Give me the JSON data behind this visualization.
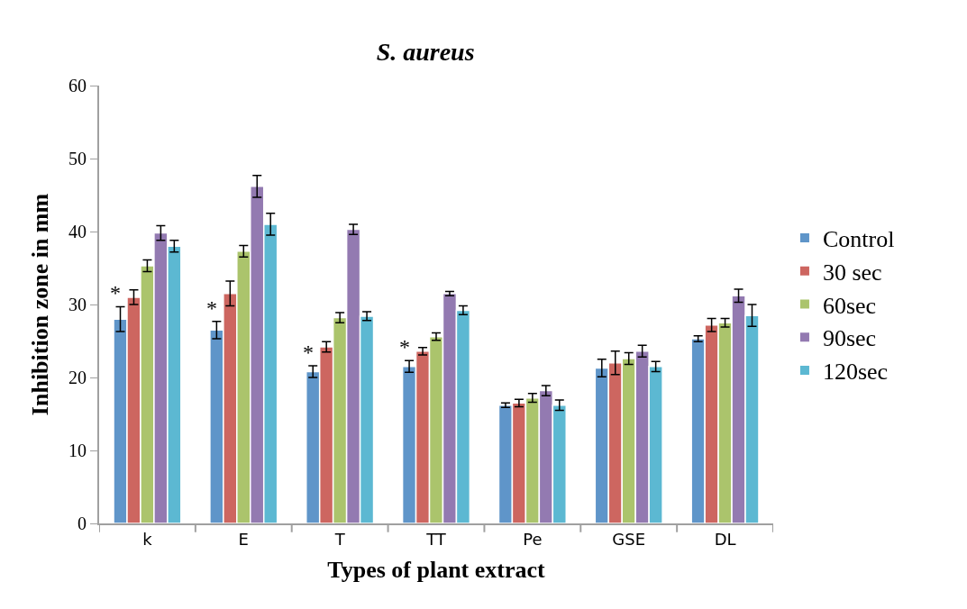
{
  "chart_data": {
    "type": "bar",
    "title": "S. aureus",
    "xlabel": "Types of plant extract",
    "ylabel": "Inhibition zone in mm",
    "categories": [
      "k",
      "E",
      "T",
      "TT",
      "Pe",
      "GSE",
      "DL"
    ],
    "series": [
      {
        "name": "Control",
        "color": "#5f95c9",
        "values": [
          28,
          26.5,
          20.8,
          21.5,
          16.2,
          21.3,
          25.3
        ],
        "errors": [
          1.7,
          1.2,
          0.8,
          0.8,
          0.3,
          1.2,
          0.4
        ]
      },
      {
        "name": "30 sec",
        "color": "#cd6660",
        "values": [
          31,
          31.5,
          24.2,
          23.6,
          16.5,
          22,
          27.2
        ],
        "errors": [
          1,
          1.7,
          0.7,
          0.5,
          0.5,
          1.6,
          0.9
        ]
      },
      {
        "name": "60sec",
        "color": "#abc46c",
        "values": [
          35.3,
          37.3,
          28.2,
          25.6,
          17.2,
          22.6,
          27.5
        ],
        "errors": [
          0.8,
          0.8,
          0.7,
          0.5,
          0.6,
          0.8,
          0.6
        ]
      },
      {
        "name": "90sec",
        "color": "#937ab1",
        "values": [
          39.8,
          46.2,
          40.3,
          31.5,
          18.2,
          23.6,
          31.2
        ],
        "errors": [
          1,
          1.5,
          0.7,
          0.3,
          0.7,
          0.8,
          0.9
        ]
      },
      {
        "name": "120sec",
        "color": "#5cb8d2",
        "values": [
          38,
          41,
          28.4,
          29.2,
          16.2,
          21.5,
          28.5
        ],
        "errors": [
          0.8,
          1.5,
          0.6,
          0.6,
          0.7,
          0.7,
          1.5
        ]
      }
    ],
    "annotations": [
      "*",
      "*",
      "*",
      "*"
    ],
    "ylim": [
      0,
      60
    ],
    "yticks": [
      0,
      10,
      20,
      30,
      40,
      50,
      60
    ],
    "legend": "right"
  }
}
